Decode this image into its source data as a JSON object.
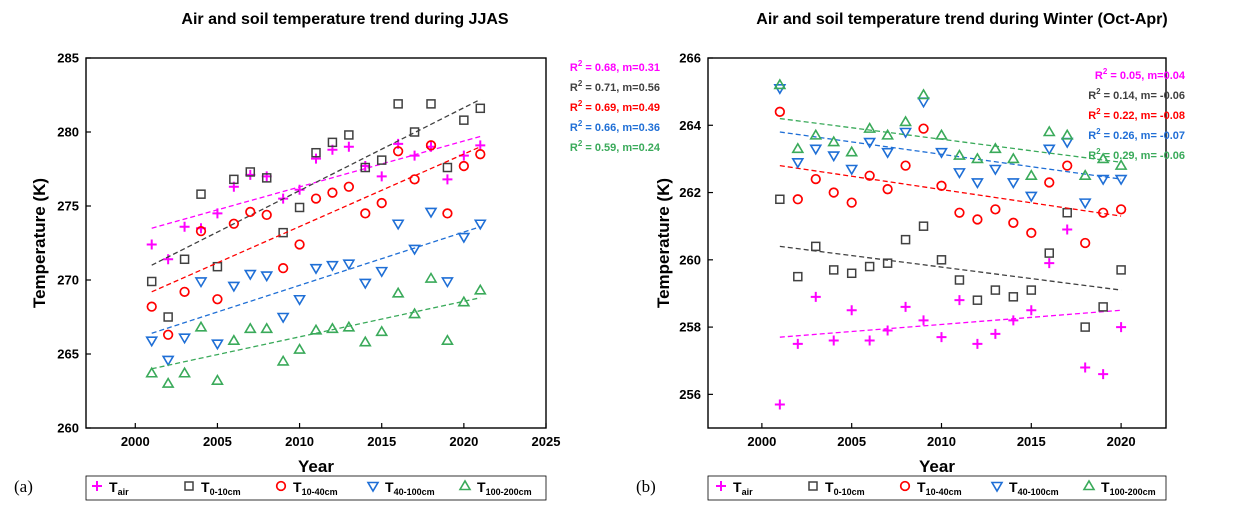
{
  "colors": {
    "t_air": "#ff00ff",
    "t_0_10": "#404040",
    "t_10_40": "#ff0000",
    "t_40_100": "#1f6fd6",
    "t_100_200": "#3aaa5a"
  },
  "chart_data": [
    {
      "id": "a",
      "type": "scatter",
      "panel_label": "(a)",
      "title": "Air and soil temperature trend during JJAS",
      "xlabel": "Year",
      "ylabel": "Temperature (K)",
      "xlim": [
        1997,
        2025
      ],
      "ylim": [
        260,
        285
      ],
      "xticks": [
        2000,
        2005,
        2010,
        2015,
        2020,
        2025
      ],
      "yticks": [
        260,
        265,
        270,
        275,
        280,
        285
      ],
      "grid": false,
      "legend_position": "bottom",
      "series": [
        {
          "key": "t_air",
          "marker": "plus",
          "legend_base": "T",
          "legend_sub": "air",
          "stat_r2": "0.68",
          "stat_m": "m=0.31",
          "stat_sep": ", ",
          "x": [
            2001,
            2002,
            2003,
            2004,
            2005,
            2006,
            2007,
            2008,
            2009,
            2010,
            2011,
            2012,
            2013,
            2014,
            2015,
            2016,
            2017,
            2018,
            2019,
            2020,
            2021
          ],
          "y": [
            272.4,
            271.4,
            273.6,
            273.5,
            274.5,
            276.3,
            277.1,
            277.0,
            275.5,
            276.1,
            278.2,
            278.8,
            279.0,
            277.7,
            277.0,
            279.2,
            278.4,
            279.0,
            276.8,
            278.4,
            279.1
          ],
          "trend": [
            [
              2001,
              273.5
            ],
            [
              2021,
              279.7
            ]
          ]
        },
        {
          "key": "t_0_10",
          "marker": "square",
          "legend_base": "T",
          "legend_sub": "0-10cm",
          "stat_r2": "0.71",
          "stat_m": "m=0.56",
          "stat_sep": ", ",
          "x": [
            2001,
            2002,
            2003,
            2004,
            2005,
            2006,
            2007,
            2008,
            2009,
            2010,
            2011,
            2012,
            2013,
            2014,
            2015,
            2016,
            2017,
            2018,
            2019,
            2020,
            2021
          ],
          "y": [
            269.9,
            267.5,
            271.4,
            275.8,
            270.9,
            276.8,
            277.3,
            276.9,
            273.2,
            274.9,
            278.6,
            279.3,
            279.8,
            277.6,
            278.1,
            281.9,
            280.0,
            281.9,
            277.6,
            280.8,
            281.6
          ],
          "trend": [
            [
              2001,
              271.0
            ],
            [
              2021,
              282.2
            ]
          ]
        },
        {
          "key": "t_10_40",
          "marker": "circle",
          "legend_base": "T",
          "legend_sub": "10-40cm",
          "stat_r2": "0.69",
          "stat_m": "m=0.49",
          "stat_sep": ", ",
          "x": [
            2001,
            2002,
            2003,
            2004,
            2005,
            2006,
            2007,
            2008,
            2009,
            2010,
            2011,
            2012,
            2013,
            2014,
            2015,
            2016,
            2017,
            2018,
            2019,
            2020,
            2021
          ],
          "y": [
            268.2,
            266.3,
            269.2,
            273.3,
            268.7,
            273.8,
            274.6,
            274.4,
            270.8,
            272.4,
            275.5,
            275.9,
            276.3,
            274.5,
            275.2,
            278.7,
            276.8,
            279.1,
            274.5,
            277.7,
            278.5
          ],
          "trend": [
            [
              2001,
              269.2
            ],
            [
              2021,
              279.0
            ]
          ]
        },
        {
          "key": "t_40_100",
          "marker": "tri-down",
          "legend_base": "T",
          "legend_sub": "40-100cm",
          "stat_r2": "0.66",
          "stat_m": "m=0.36",
          "stat_sep": ", ",
          "x": [
            2001,
            2002,
            2003,
            2004,
            2005,
            2006,
            2007,
            2008,
            2009,
            2010,
            2011,
            2012,
            2013,
            2014,
            2015,
            2016,
            2017,
            2018,
            2019,
            2020,
            2021
          ],
          "y": [
            265.9,
            264.6,
            266.1,
            269.9,
            265.7,
            269.6,
            270.4,
            270.3,
            267.5,
            268.7,
            270.8,
            271.0,
            271.1,
            269.8,
            270.6,
            273.8,
            272.1,
            274.6,
            269.9,
            272.9,
            273.8
          ],
          "trend": [
            [
              2001,
              266.4
            ],
            [
              2021,
              273.6
            ]
          ]
        },
        {
          "key": "t_100_200",
          "marker": "tri-up",
          "legend_base": "T",
          "legend_sub": "100-200cm",
          "stat_r2": "0.59",
          "stat_m": "m=0.24",
          "stat_sep": ", ",
          "x": [
            2001,
            2002,
            2003,
            2004,
            2005,
            2006,
            2007,
            2008,
            2009,
            2010,
            2011,
            2012,
            2013,
            2014,
            2015,
            2016,
            2017,
            2018,
            2019,
            2020,
            2021
          ],
          "y": [
            263.7,
            263.0,
            263.7,
            266.8,
            263.2,
            265.9,
            266.7,
            266.7,
            264.5,
            265.3,
            266.6,
            266.7,
            266.8,
            265.8,
            266.5,
            269.1,
            267.7,
            270.1,
            265.9,
            268.5,
            269.3
          ],
          "trend": [
            [
              2001,
              264.0
            ],
            [
              2021,
              268.8
            ]
          ]
        }
      ]
    },
    {
      "id": "b",
      "type": "scatter",
      "panel_label": "(b)",
      "title": "Air and soil temperature trend during Winter (Oct-Apr)",
      "xlabel": "Year",
      "ylabel": "Temperature (K)",
      "xlim": [
        1997,
        2022.5
      ],
      "ylim": [
        255,
        266
      ],
      "xticks": [
        2000,
        2005,
        2010,
        2015,
        2020
      ],
      "yticks": [
        256,
        258,
        260,
        262,
        264,
        266
      ],
      "grid": false,
      "legend_position": "bottom",
      "series": [
        {
          "key": "t_air",
          "marker": "plus",
          "legend_base": "T",
          "legend_sub": "air",
          "stat_r2": "0.05",
          "stat_m": "m=0.04",
          "stat_sep": ", ",
          "x": [
            2001,
            2002,
            2003,
            2004,
            2005,
            2006,
            2007,
            2008,
            2009,
            2010,
            2011,
            2012,
            2013,
            2014,
            2015,
            2016,
            2017,
            2018,
            2019,
            2020
          ],
          "y": [
            255.7,
            257.5,
            258.9,
            257.6,
            258.5,
            257.6,
            257.9,
            258.6,
            258.2,
            257.7,
            258.8,
            257.5,
            257.8,
            258.2,
            258.5,
            259.9,
            260.9,
            256.8,
            256.6,
            258.0
          ],
          "trend": [
            [
              2001,
              257.7
            ],
            [
              2020,
              258.5
            ]
          ]
        },
        {
          "key": "t_0_10",
          "marker": "square",
          "legend_base": "T",
          "legend_sub": "0-10cm",
          "stat_r2": "0.14",
          "stat_m": "m= -0.06",
          "stat_sep": ", ",
          "x": [
            2001,
            2002,
            2003,
            2004,
            2005,
            2006,
            2007,
            2008,
            2009,
            2010,
            2011,
            2012,
            2013,
            2014,
            2015,
            2016,
            2017,
            2018,
            2019,
            2020
          ],
          "y": [
            261.8,
            259.5,
            260.4,
            259.7,
            259.6,
            259.8,
            259.9,
            260.6,
            261.0,
            260.0,
            259.4,
            258.8,
            259.1,
            258.9,
            259.1,
            260.2,
            261.4,
            258.0,
            258.6,
            259.7
          ],
          "trend": [
            [
              2001,
              260.4
            ],
            [
              2020,
              259.1
            ]
          ]
        },
        {
          "key": "t_10_40",
          "marker": "circle",
          "legend_base": "T",
          "legend_sub": "10-40cm",
          "stat_r2": "0.22",
          "stat_m": "m= -0.08",
          "stat_sep": ", ",
          "x": [
            2001,
            2002,
            2003,
            2004,
            2005,
            2006,
            2007,
            2008,
            2009,
            2010,
            2011,
            2012,
            2013,
            2014,
            2015,
            2016,
            2017,
            2018,
            2019,
            2020
          ],
          "y": [
            264.4,
            261.8,
            262.4,
            262.0,
            261.7,
            262.5,
            262.1,
            262.8,
            263.9,
            262.2,
            261.4,
            261.2,
            261.5,
            261.1,
            260.8,
            262.3,
            262.8,
            260.5,
            261.4,
            261.5
          ],
          "trend": [
            [
              2001,
              262.8
            ],
            [
              2020,
              261.3
            ]
          ]
        },
        {
          "key": "t_40_100",
          "marker": "tri-down",
          "legend_base": "T",
          "legend_sub": "40-100cm",
          "stat_r2": "0.26",
          "stat_m": "m= -0.07",
          "stat_sep": ", ",
          "x": [
            2001,
            2002,
            2003,
            2004,
            2005,
            2006,
            2007,
            2008,
            2009,
            2010,
            2011,
            2012,
            2013,
            2014,
            2015,
            2016,
            2017,
            2018,
            2019,
            2020
          ],
          "y": [
            265.1,
            262.9,
            263.3,
            263.1,
            262.7,
            263.5,
            263.2,
            263.8,
            264.7,
            263.2,
            262.6,
            262.3,
            262.7,
            262.3,
            261.9,
            263.3,
            263.5,
            261.7,
            262.4,
            262.4
          ],
          "trend": [
            [
              2001,
              263.8
            ],
            [
              2020,
              262.4
            ]
          ]
        },
        {
          "key": "t_100_200",
          "marker": "tri-up",
          "legend_base": "T",
          "legend_sub": "100-200cm",
          "stat_r2": "0.29",
          "stat_m": "m= -0.06",
          "stat_sep": ", ",
          "x": [
            2001,
            2002,
            2003,
            2004,
            2005,
            2006,
            2007,
            2008,
            2009,
            2010,
            2011,
            2012,
            2013,
            2014,
            2015,
            2016,
            2017,
            2018,
            2019,
            2020
          ],
          "y": [
            265.2,
            263.3,
            263.7,
            263.5,
            263.2,
            263.9,
            263.7,
            264.1,
            264.9,
            263.7,
            263.1,
            263.0,
            263.3,
            263.0,
            262.5,
            263.8,
            263.7,
            262.5,
            263.0,
            262.8
          ],
          "trend": [
            [
              2001,
              264.2
            ],
            [
              2020,
              262.9
            ]
          ]
        }
      ]
    }
  ]
}
